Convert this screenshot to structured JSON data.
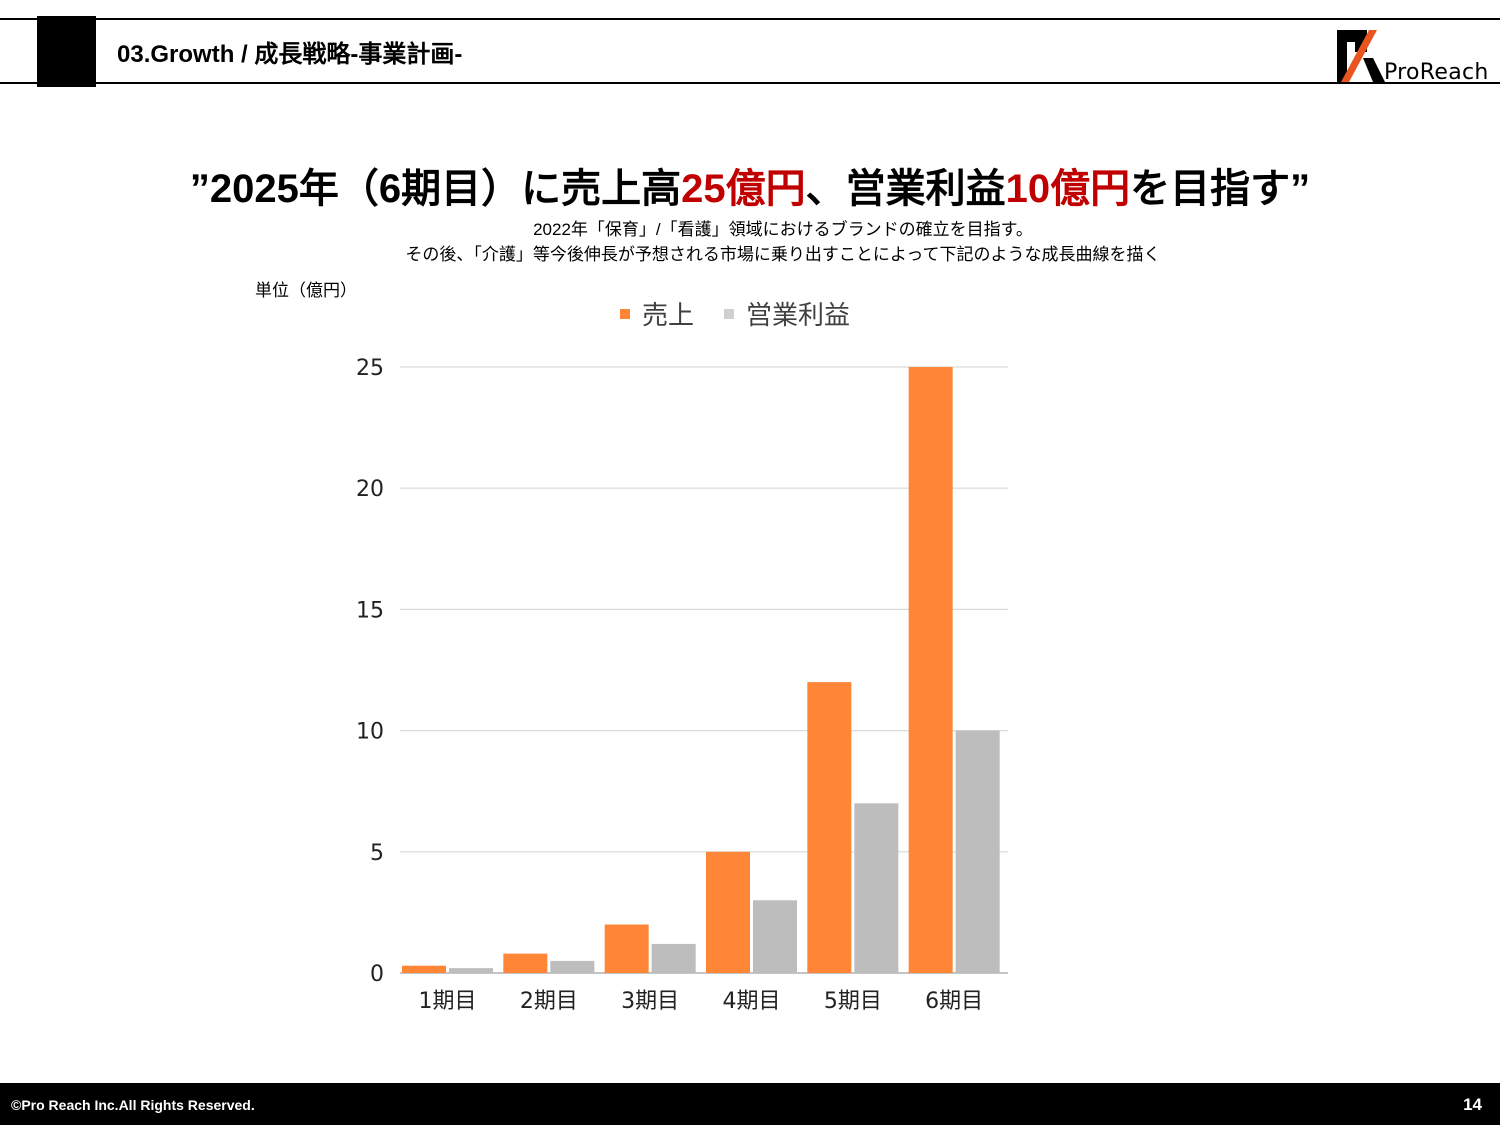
{
  "header": {
    "title": "03.Growth / 成長戦略-事業計画-"
  },
  "logo": {
    "text": "ProReach"
  },
  "headline": {
    "part1": "”2025年（6期目）に売上高",
    "red1": "25億円",
    "part2": "、営業利益",
    "red2": "10億円",
    "part3": "を目指す”"
  },
  "subtitle": {
    "line1": "2022年「保育」/「看護」領域におけるブランドの確立を目指す。",
    "line2": "その後、「介護」等今後伸長が予想される市場に乗り出すことによって下記のような成長曲線を描く"
  },
  "unit_label": "単位（億円）",
  "chart_data": {
    "type": "bar",
    "categories": [
      "1期目",
      "2期目",
      "3期目",
      "4期目",
      "5期目",
      "6期目"
    ],
    "series": [
      {
        "name": "売上",
        "values": [
          0.3,
          0.8,
          2,
          5,
          12,
          25
        ],
        "color": "#ff8637"
      },
      {
        "name": "営業利益",
        "values": [
          0.2,
          0.5,
          1.2,
          3,
          7,
          10
        ],
        "color": "#bdbdbd"
      }
    ],
    "ylim": [
      0,
      25
    ],
    "yticks": [
      0,
      5,
      10,
      15,
      20,
      25
    ],
    "grid": true,
    "legend": "top"
  },
  "footer": {
    "copyright": "©Pro Reach  Inc.All Rights Reserved.",
    "page": "14"
  }
}
